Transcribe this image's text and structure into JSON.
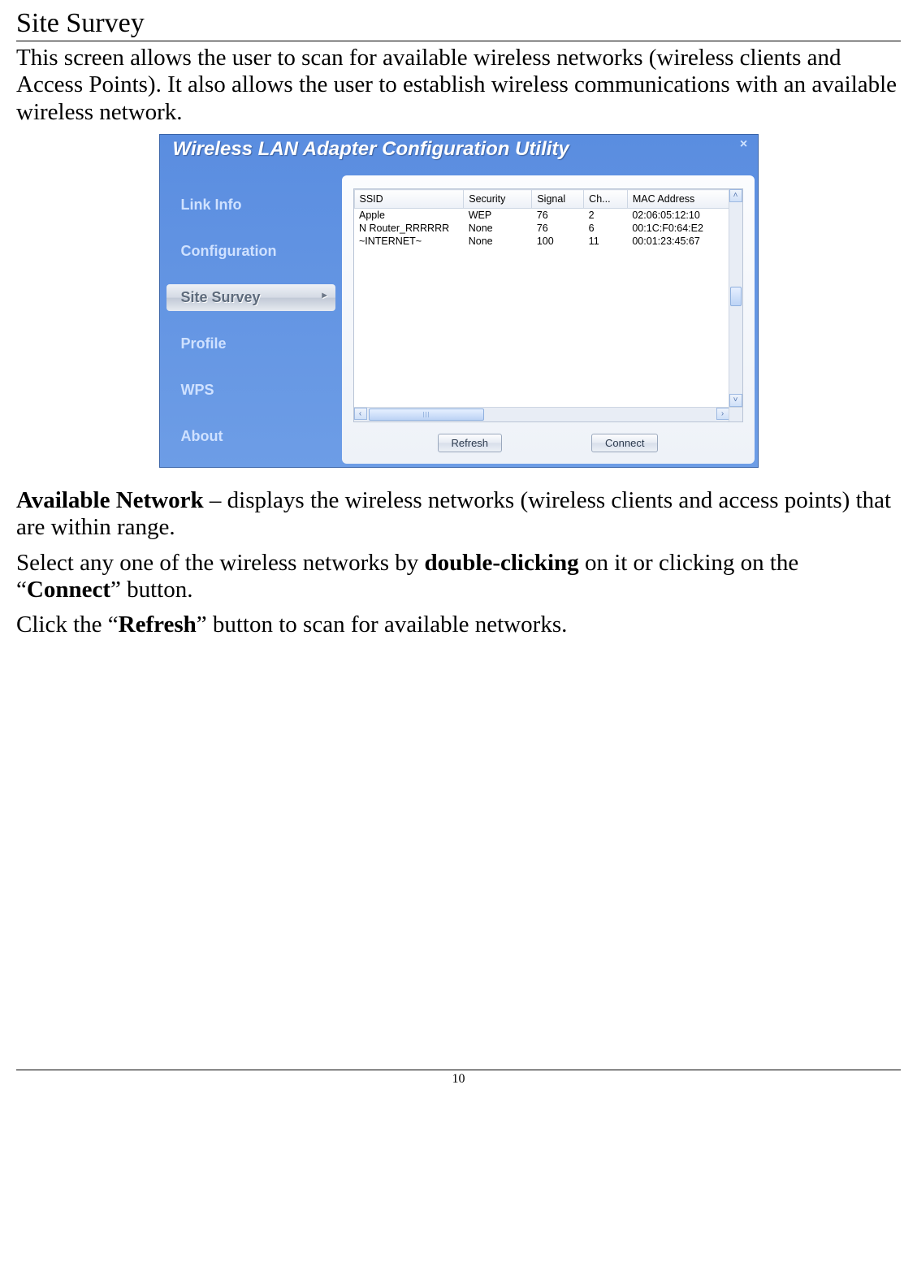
{
  "doc": {
    "heading": "Site Survey",
    "intro": "This screen allows the user to scan for available wireless networks (wireless clients and Access Points).  It also allows the user to establish wireless communications with an available wireless network.",
    "p2_prefix_bold": "Available Network",
    "p2_rest": " – displays the wireless networks (wireless clients and access points) that are within range.",
    "p3_a": "Select any one of the wireless networks by ",
    "p3_b_bold": "double-clicking",
    "p3_c": " on it or clicking  on the “",
    "p3_d_bold": "Connect",
    "p3_e": "” button.",
    "p4_a": "Click the “",
    "p4_b_bold": "Refresh",
    "p4_c": "” button to scan for available networks.",
    "page_number": "10"
  },
  "app": {
    "title": "Wireless LAN Adapter Configuration Utility",
    "close_glyph": "×",
    "nav": {
      "link_info": "Link Info",
      "configuration": "Configuration",
      "site_survey": "Site Survey",
      "chevron": "▸",
      "profile": "Profile",
      "wps": "WPS",
      "about": "About"
    },
    "table": {
      "headers": {
        "ssid": "SSID",
        "security": "Security",
        "signal": "Signal",
        "channel": "Ch...",
        "mac": "MAC Address"
      },
      "rows": [
        {
          "ssid": "Apple",
          "security": "WEP",
          "signal": "76",
          "channel": "2",
          "mac": "02:06:05:12:10"
        },
        {
          "ssid": "N Router_RRRRRR",
          "security": "None",
          "signal": "76",
          "channel": "6",
          "mac": "00:1C:F0:64:E2"
        },
        {
          "ssid": "~INTERNET~",
          "security": "None",
          "signal": "100",
          "channel": "11",
          "mac": "00:01:23:45:67"
        }
      ]
    },
    "buttons": {
      "refresh": "Refresh",
      "connect": "Connect"
    },
    "scroll": {
      "up": "˄",
      "down": "˅",
      "left": "‹",
      "right": "›"
    }
  }
}
